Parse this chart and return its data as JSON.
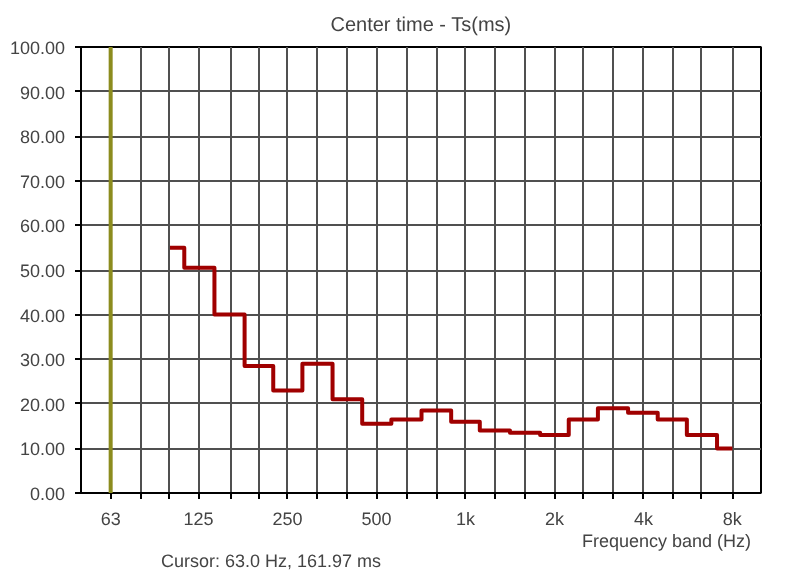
{
  "chart_data": {
    "type": "step",
    "title": "Center time - Ts(ms)",
    "xlabel": "Frequency band (Hz)",
    "x": [
      100,
      125,
      160,
      200,
      250,
      315,
      400,
      500,
      630,
      800,
      1000,
      1250,
      1600,
      2000,
      2500,
      3150,
      4000,
      5000,
      6300,
      8000
    ],
    "series": [
      {
        "color": "#a00000",
        "values": [
          55,
          50.5,
          40,
          28.5,
          23,
          29,
          21,
          15.5,
          16.5,
          18.5,
          16,
          14,
          13.5,
          13,
          16.5,
          19,
          18,
          16.5,
          13,
          10
        ]
      }
    ],
    "log": "x",
    "xlim": [
      50,
      10000
    ],
    "xticks": [
      {
        "value": 63,
        "label": "63"
      },
      {
        "value": 80,
        "label": null
      },
      {
        "value": 100,
        "label": null
      },
      {
        "value": 125,
        "label": "125"
      },
      {
        "value": 160,
        "label": null
      },
      {
        "value": 200,
        "label": null
      },
      {
        "value": 250,
        "label": "250"
      },
      {
        "value": 315,
        "label": null
      },
      {
        "value": 400,
        "label": null
      },
      {
        "value": 500,
        "label": "500"
      },
      {
        "value": 630,
        "label": null
      },
      {
        "value": 800,
        "label": null
      },
      {
        "value": 1000,
        "label": "1k"
      },
      {
        "value": 1250,
        "label": null
      },
      {
        "value": 1600,
        "label": null
      },
      {
        "value": 2000,
        "label": "2k"
      },
      {
        "value": 2500,
        "label": null
      },
      {
        "value": 3150,
        "label": null
      },
      {
        "value": 4000,
        "label": "4k"
      },
      {
        "value": 5000,
        "label": null
      },
      {
        "value": 6300,
        "label": null
      },
      {
        "value": 8000,
        "label": "8k"
      }
    ],
    "ylim": [
      0,
      100
    ],
    "yticks": [
      {
        "value": 0,
        "label": "0.00"
      },
      {
        "value": 10,
        "label": "10.00"
      },
      {
        "value": 20,
        "label": "20.00"
      },
      {
        "value": 30,
        "label": "30.00"
      },
      {
        "value": 40,
        "label": "40.00"
      },
      {
        "value": 50,
        "label": "50.00"
      },
      {
        "value": 60,
        "label": "60.00"
      },
      {
        "value": 70,
        "label": "70.00"
      },
      {
        "value": 80,
        "label": "80.00"
      },
      {
        "value": 90,
        "label": "90.00"
      },
      {
        "value": 100,
        "label": "100.00"
      }
    ],
    "grid": true,
    "ref_lines": [
      {
        "axis": "x",
        "value": 63,
        "label": null,
        "color": "#8c8c1e"
      }
    ],
    "annotations": [
      "Cursor:   63.0 Hz, 161.97 ms"
    ]
  }
}
